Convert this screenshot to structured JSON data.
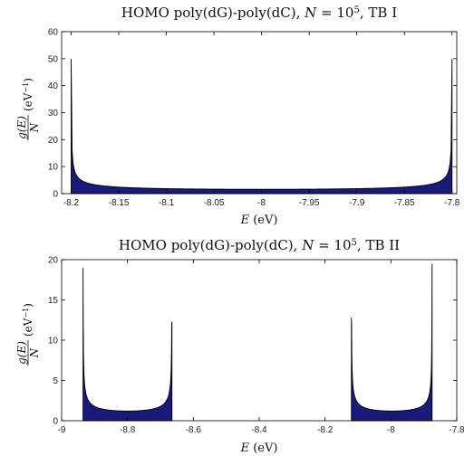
{
  "chart_data": [
    {
      "type": "area",
      "title_pre": "HOMO poly(dG)-poly(dC), ",
      "title_math": "N",
      "title_eq": " = 10",
      "title_sup": "5",
      "title_post": ", TB I",
      "xlabel_var": "E",
      "xlabel_unit": " (eV)",
      "ylabel_num": "g(E)",
      "ylabel_den": "N",
      "ylabel_unit": "(eV",
      "ylabel_sup": "−1",
      "ylabel_close": ")",
      "xlim": [
        -8.21,
        -7.795
      ],
      "ylim": [
        0,
        60
      ],
      "xticks": [
        -8.2,
        -8.15,
        -8.1,
        -8.05,
        -8,
        -7.95,
        -7.9,
        -7.85,
        -7.8
      ],
      "xtick_labels": [
        "-8.2",
        "-8.15",
        "-8.1",
        "-8.05",
        "-8",
        "-7.95",
        "-7.9",
        "-7.85",
        "-7.8"
      ],
      "yticks": [
        0,
        10,
        20,
        30,
        40,
        50,
        60
      ],
      "ytick_labels": [
        "0",
        "10",
        "20",
        "30",
        "40",
        "50",
        "60"
      ],
      "fill_color": "#1a1a7a",
      "bands": [
        {
          "center": -8.0,
          "halfwidth": 0.2,
          "peak": 50,
          "floor": 1.6
        }
      ]
    },
    {
      "type": "area",
      "title_pre": "HOMO poly(dG)-poly(dC), ",
      "title_math": "N",
      "title_eq": " = 10",
      "title_sup": "5",
      "title_post": ", TB II",
      "xlabel_var": "E",
      "xlabel_unit": " (eV)",
      "ylabel_num": "g(E)",
      "ylabel_den": "N",
      "ylabel_unit": "(eV",
      "ylabel_sup": "−1",
      "ylabel_close": ")",
      "xlim": [
        -9,
        -7.8
      ],
      "ylim": [
        0,
        20
      ],
      "xticks": [
        -9,
        -8.8,
        -8.6,
        -8.4,
        -8.2,
        -8,
        -7.8
      ],
      "xtick_labels": [
        "-9",
        "-8.8",
        "-8.6",
        "-8.4",
        "-8.2",
        "-8",
        "-7.8"
      ],
      "yticks": [
        0,
        5,
        10,
        15,
        20
      ],
      "ytick_labels": [
        "0",
        "5",
        "10",
        "15",
        "20"
      ],
      "fill_color": "#1a1a7a",
      "bands": [
        {
          "lo": -8.935,
          "hi": -8.665,
          "peak_lo": 19,
          "peak_hi": 12.3,
          "floor": 1.2
        },
        {
          "lo": -8.12,
          "hi": -7.875,
          "peak_lo": 12.8,
          "peak_hi": 19.5,
          "floor": 1.2
        }
      ]
    }
  ]
}
